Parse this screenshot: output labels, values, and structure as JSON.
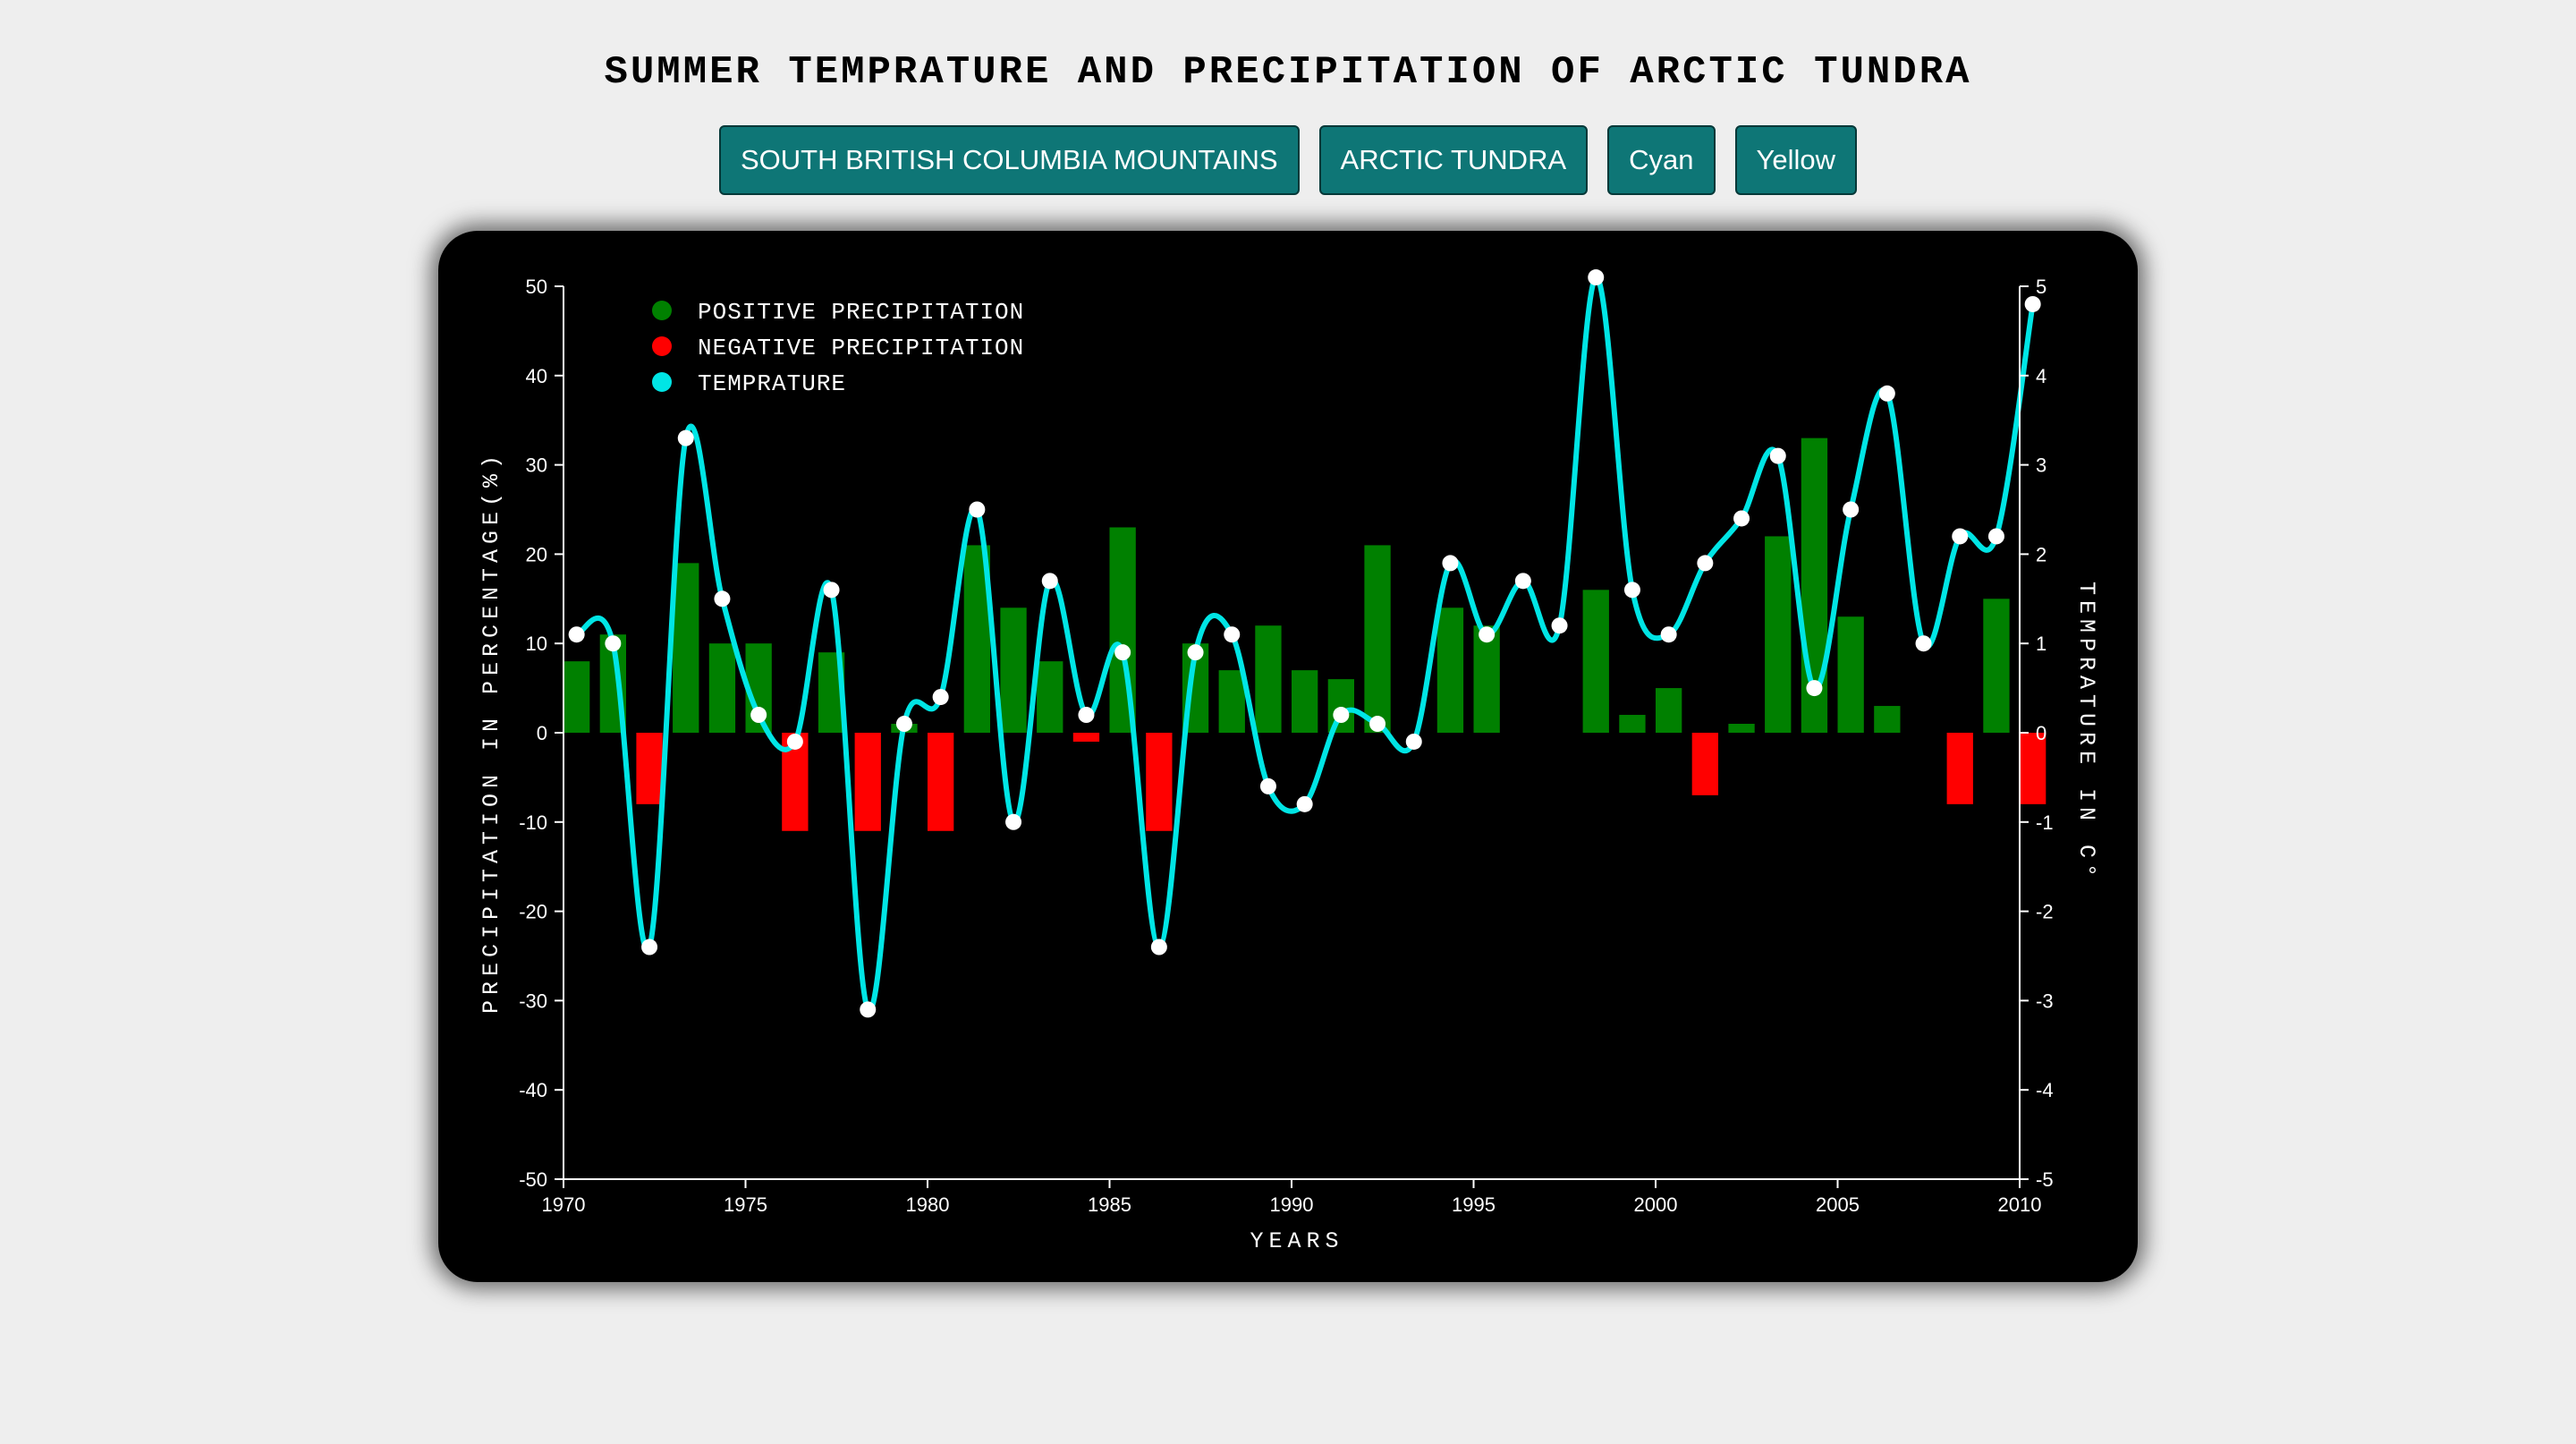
{
  "page": {
    "title": "SUMMER TEMPRATURE AND PRECIPITATION OF ARCTIC TUNDRA"
  },
  "buttons": [
    "SOUTH BRITISH COLUMBIA MOUNTAINS",
    "ARCTIC TUNDRA",
    "Cyan",
    "Yellow"
  ],
  "colors": {
    "positive_bar": "#008000",
    "negative_bar": "#ff0000",
    "temperature_line": "#00e5e5",
    "temperature_point": "#ffffff",
    "button_bg": "#0e7676",
    "panel_bg": "#000000"
  },
  "chart_data": {
    "type": "bar+line",
    "xlabel": "YEARS",
    "ylabel_left": "PRECIPITATION IN PERCENTAGE(%)",
    "ylabel_right": "TEMPRATURE IN C°",
    "xlim": [
      1970,
      2010
    ],
    "ylim_left": [
      -50,
      50
    ],
    "ylim_right": [
      -5,
      5
    ],
    "x_ticks": [
      1970,
      1975,
      1980,
      1985,
      1990,
      1995,
      2000,
      2005,
      2010
    ],
    "y_ticks_left": [
      50,
      40,
      30,
      20,
      10,
      0,
      -10,
      -20,
      -30,
      -40,
      -50
    ],
    "y_ticks_right": [
      5,
      4,
      3,
      2,
      1,
      0,
      -1,
      -2,
      -3,
      -4,
      -5
    ],
    "legend": [
      {
        "label": "POSITIVE PRECIPITATION",
        "color": "#008000"
      },
      {
        "label": "NEGATIVE PRECIPITATION",
        "color": "#ff0000"
      },
      {
        "label": "TEMPRATURE",
        "color": "#00e5e5"
      }
    ],
    "legend_position": "top-left",
    "grid": false,
    "years": [
      1970,
      1971,
      1972,
      1973,
      1974,
      1975,
      1976,
      1977,
      1978,
      1979,
      1980,
      1981,
      1982,
      1983,
      1984,
      1985,
      1986,
      1987,
      1988,
      1989,
      1990,
      1991,
      1992,
      1993,
      1994,
      1995,
      1996,
      1997,
      1998,
      1999,
      2000,
      2001,
      2002,
      2003,
      2004,
      2005,
      2006,
      2007,
      2008,
      2009,
      2010
    ],
    "precipitation": [
      8,
      11,
      -8,
      19,
      10,
      10,
      -11,
      9,
      -11,
      1,
      -11,
      21,
      14,
      8,
      -1,
      23,
      -11,
      10,
      7,
      12,
      7,
      6,
      21,
      0,
      14,
      12,
      0,
      0,
      16,
      2,
      5,
      -7,
      1,
      22,
      33,
      13,
      3,
      0,
      -8,
      15,
      -8
    ],
    "temperature": [
      1.1,
      1.0,
      -2.4,
      3.3,
      1.5,
      0.2,
      -0.1,
      1.6,
      -3.1,
      0.1,
      0.4,
      2.5,
      -1.0,
      1.7,
      0.2,
      0.9,
      -2.4,
      0.9,
      1.1,
      -0.6,
      -0.8,
      0.2,
      0.1,
      -0.1,
      1.9,
      1.1,
      1.7,
      1.2,
      5.1,
      1.6,
      1.1,
      1.9,
      2.4,
      3.1,
      0.5,
      2.5,
      3.8,
      1.0,
      2.2,
      2.2,
      4.8
    ]
  }
}
